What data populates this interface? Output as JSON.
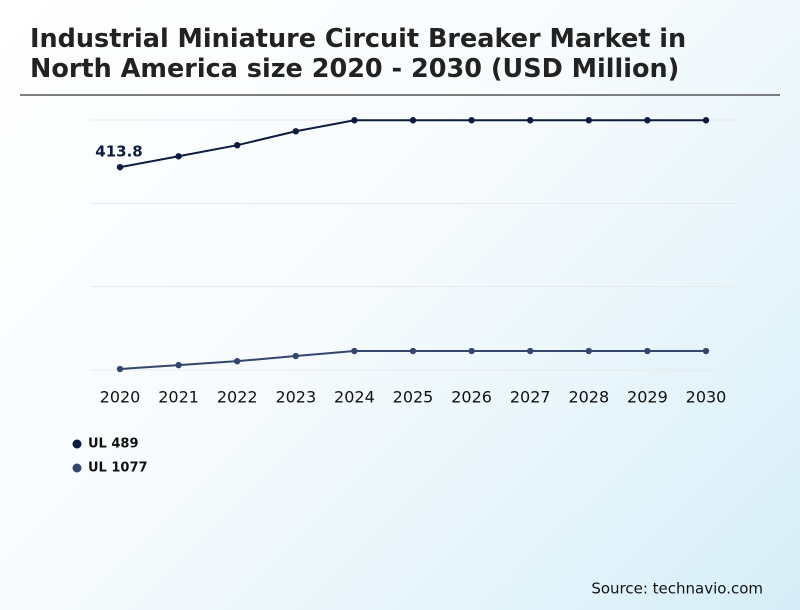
{
  "chart_data": {
    "type": "line",
    "title": "Industrial Miniature Circuit Breaker Market in North America size 2020 - 2030 (USD Million)",
    "categories": [
      "2020",
      "2021",
      "2022",
      "2023",
      "2024",
      "2025",
      "2026",
      "2027",
      "2028",
      "2029",
      "2030"
    ],
    "series": [
      {
        "name": "UL 489",
        "color": "#0d1b3e",
        "values": [
          413.8,
          436,
          458.6,
          487,
          509.5,
          509.5,
          509.5,
          509.5,
          509.5,
          509.5,
          509.5
        ]
      },
      {
        "name": "UL 1077",
        "color": "#34466e",
        "values": [
          2,
          10,
          18,
          28.5,
          38.7,
          38.7,
          38.7,
          38.7,
          38.7,
          38.7,
          38.7
        ]
      }
    ],
    "ylim": [
      0,
      510
    ],
    "yticks": [
      0,
      170,
      340,
      510
    ],
    "grid": true,
    "source": "Source: technavio.com"
  }
}
